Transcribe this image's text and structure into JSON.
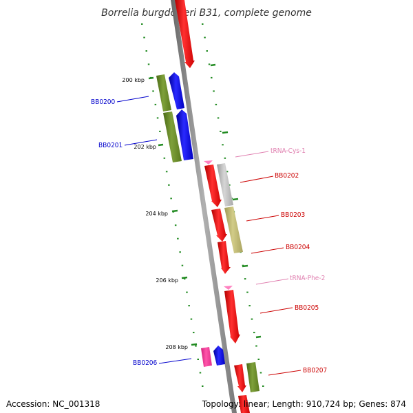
{
  "title": "Borrelia burgdorferi B31, complete genome",
  "footer": {
    "accession": "Accession: NC_001318",
    "topology": "Topology: linear; Length: 910,724 bp; Genes: 874"
  },
  "ticks": [
    {
      "label": "200 kbp"
    },
    {
      "label": "202 kbp"
    },
    {
      "label": "204 kbp"
    },
    {
      "label": "206 kbp"
    },
    {
      "label": "208 kbp"
    }
  ],
  "labels": {
    "BB0200": "BB0200",
    "BB0201": "BB0201",
    "tRNA_Cys_1": "tRNA-Cys-1",
    "BB0202": "BB0202",
    "BB0203": "BB0203",
    "BB0204": "BB0204",
    "tRNA_Phe_2": "tRNA-Phe-2",
    "BB0205": "BB0205",
    "BB0206": "BB0206",
    "BB0207": "BB0207"
  },
  "colors": {
    "backbone": "#8c8c8c",
    "red": "#ff0000",
    "blue": "#0000ff",
    "olive": "#6b8e23",
    "khaki": "#bdb76b",
    "gray": "#c0c0c0",
    "pink": "#ff3399",
    "trna": "#ff80c0",
    "tick": "#228b22",
    "label_blue": "#0000cc",
    "label_red": "#cc0000",
    "label_trna": "#e080b0"
  }
}
